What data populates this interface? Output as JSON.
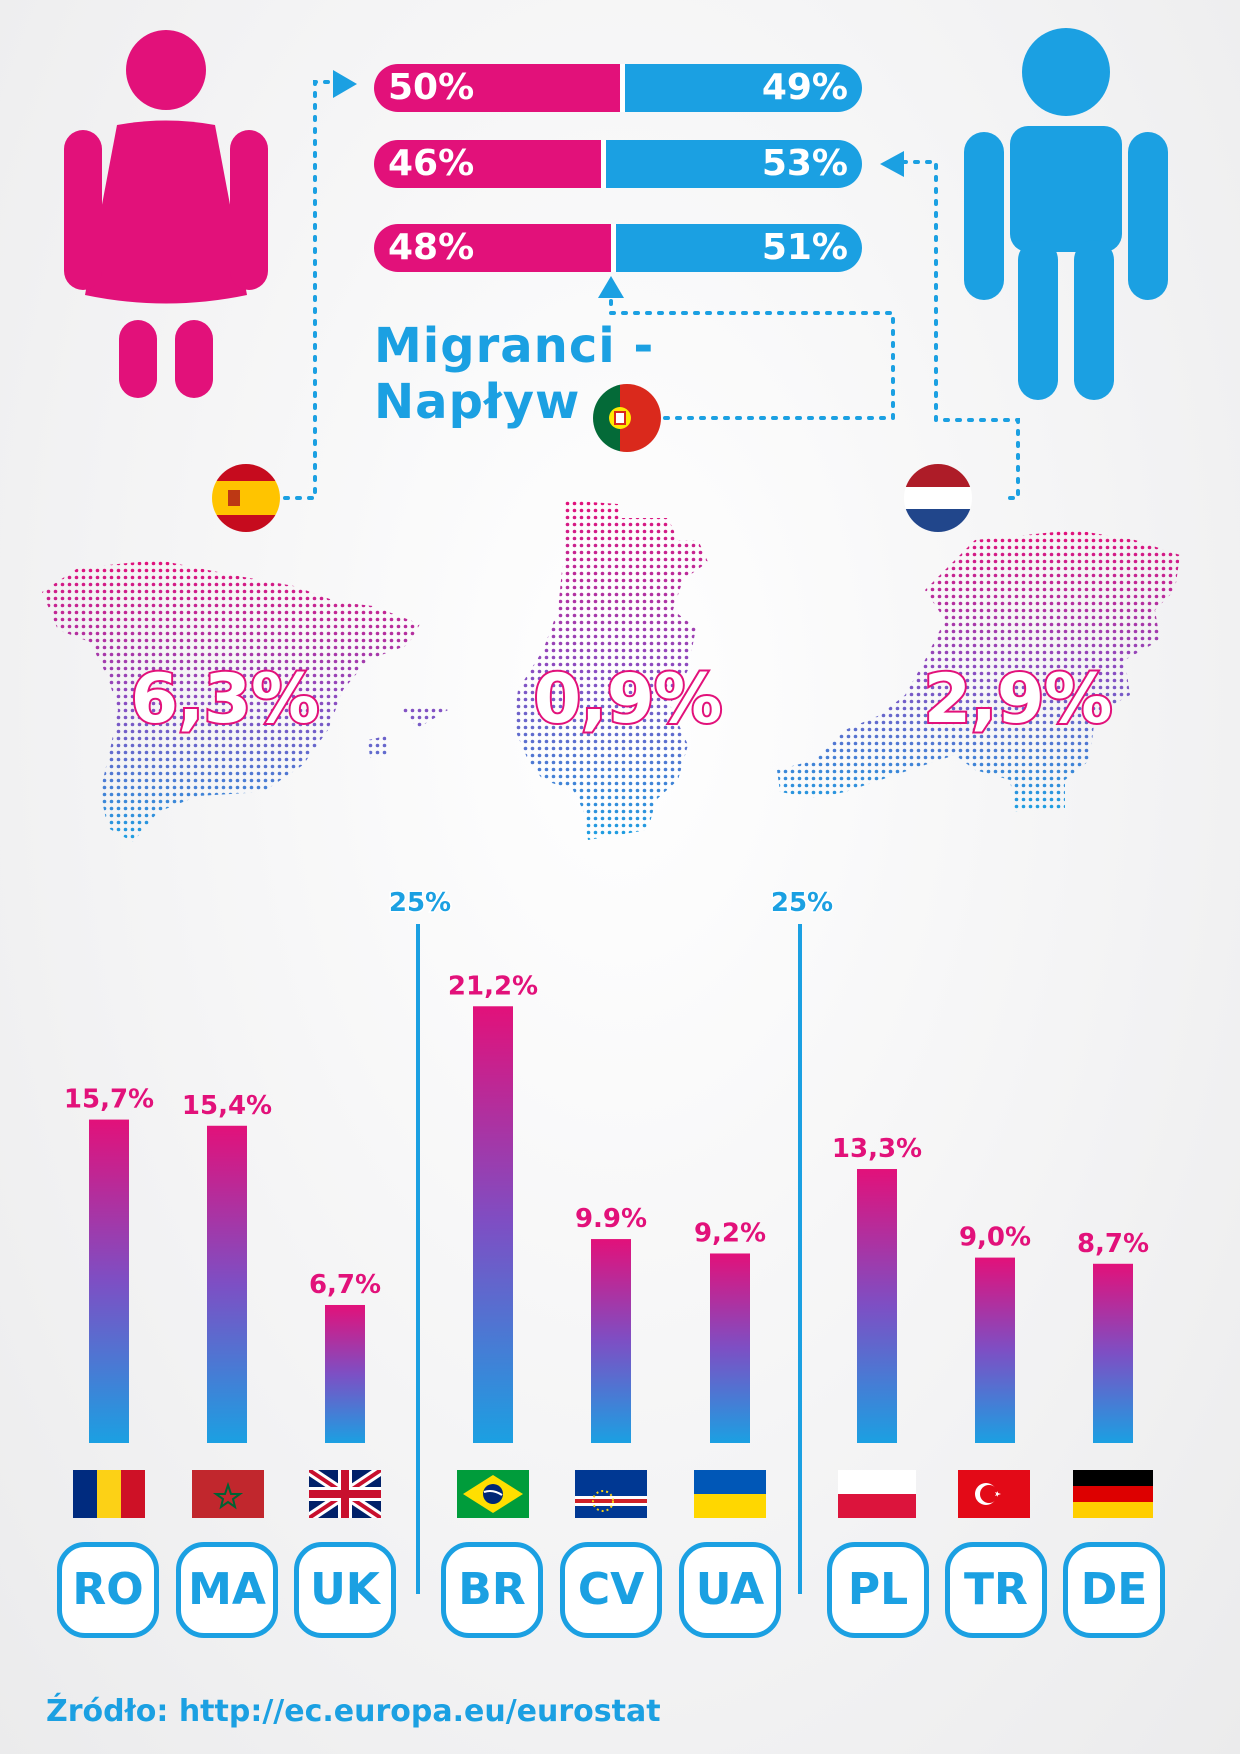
{
  "title": "Migranci - Napływ",
  "gender": [
    {
      "country": "Spain",
      "female": "50%",
      "male": "49%",
      "female_value": 50,
      "male_value": 49
    },
    {
      "country": "Netherlands",
      "female": "46%",
      "male": "53%",
      "female_value": 46,
      "male_value": 53
    },
    {
      "country": "Portugal",
      "female": "48%",
      "male": "51%",
      "female_value": 48,
      "male_value": 51
    }
  ],
  "maps": [
    {
      "country": "Spain",
      "pct": "6,3%"
    },
    {
      "country": "Portugal",
      "pct": "0,9%"
    },
    {
      "country": "Netherlands",
      "pct": "2,9%"
    }
  ],
  "markers": [
    "25%",
    "25%"
  ],
  "colors": {
    "female": "#e2117a",
    "male": "#1ba0e2"
  },
  "icons": [
    "woman-icon",
    "man-icon"
  ],
  "source": "Źródło: http://ec.europa.eu/eurostat",
  "chart_data": {
    "type": "bar",
    "ylim": [
      0,
      25
    ],
    "categories": [
      "RO",
      "MA",
      "UK",
      "BR",
      "CV",
      "UA",
      "PL",
      "TR",
      "DE"
    ],
    "values": [
      15.7,
      15.4,
      6.7,
      21.2,
      9.9,
      9.2,
      13.3,
      9.0,
      8.7
    ],
    "value_labels": [
      "15,7%",
      "15,4%",
      "6,7%",
      "21,2%",
      "9.9%",
      "9,2%",
      "13,3%",
      "9,0%",
      "8,7%"
    ]
  }
}
